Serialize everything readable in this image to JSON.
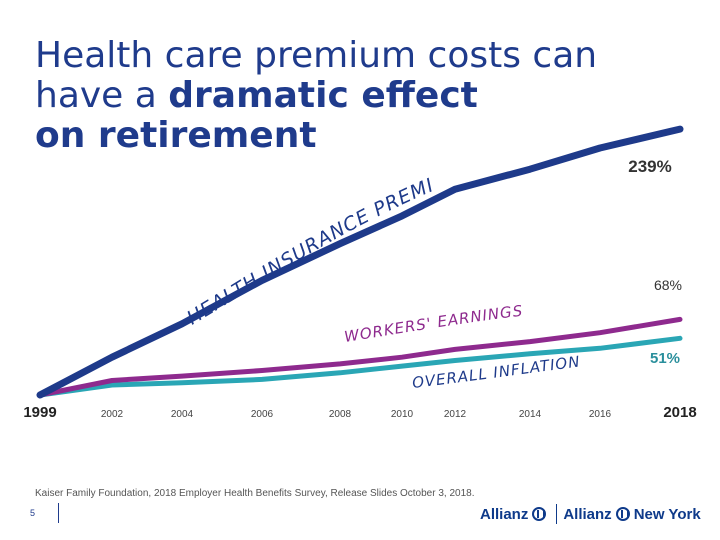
{
  "title": {
    "line1": "Health care premium costs can",
    "line2_prefix": "have a ",
    "line2_bold": "dramatic effect",
    "line3_bold": "on retirement"
  },
  "chart_data": {
    "type": "line",
    "title": "Health care premium costs can have a dramatic effect on retirement",
    "x": [
      1999,
      2002,
      2004,
      2006,
      2008,
      2010,
      2012,
      2014,
      2016,
      2018
    ],
    "x_tick_labels": [
      "1999",
      "2002",
      "2004",
      "2006",
      "2008",
      "2010",
      "2012",
      "2014",
      "2016",
      "2018"
    ],
    "ylim": [
      0,
      250
    ],
    "series": [
      {
        "name": "HEALTH INSURANCE PREMIUMS",
        "color": "#1e3a8a",
        "values": [
          0,
          34,
          64,
          103,
          136,
          161,
          185,
          203,
          222,
          239
        ],
        "end_label": "239%"
      },
      {
        "name": "WORKERS' EARNINGS",
        "color": "#8e2a8e",
        "values": [
          0,
          13,
          17,
          22,
          28,
          34,
          41,
          48,
          56,
          68
        ],
        "end_label": "68%"
      },
      {
        "name": "OVERALL INFLATION",
        "color": "#2aa6b5",
        "values": [
          0,
          9,
          11,
          14,
          20,
          26,
          31,
          37,
          42,
          51
        ],
        "end_label": "51%"
      }
    ]
  },
  "footer": {
    "source": "Kaiser Family Foundation, 2018 Employer Health Benefits Survey, Release Slides October 3, 2018.",
    "page_number": "5",
    "logo_left": "Allianz",
    "logo_right": "Allianz",
    "logo_right_suffix": "New York"
  },
  "colors": {
    "title": "#1f3b8c",
    "premiums": "#1e3a8a",
    "earnings": "#8e2a8e",
    "inflation": "#2aa6b5"
  }
}
